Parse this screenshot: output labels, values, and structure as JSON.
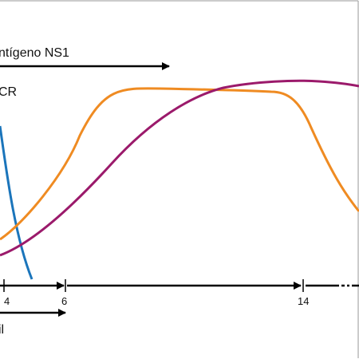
{
  "labels": {
    "ns1": "ntígeno NS1",
    "pcr": "CR",
    "bottom": "il"
  },
  "ticks": [
    "4",
    "6",
    "14"
  ],
  "colors": {
    "frame": "#999999",
    "arrow": "#000000",
    "blue_curve": "#1b75bb",
    "orange_curve": "#ef8b22",
    "purple_curve": "#9b1a6b"
  }
}
